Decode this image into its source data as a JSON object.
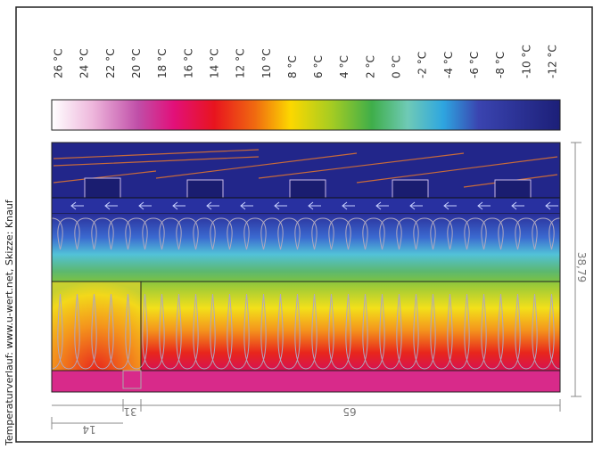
{
  "credit": "Temperaturverlauf: www.u-wert.net, Skizze: Knauf",
  "scale": {
    "labels": [
      "26 °C",
      "24 °C",
      "22 °C",
      "20 °C",
      "18 °C",
      "16 °C",
      "14 °C",
      "12 °C",
      "10 °C",
      "8 °C",
      "6 °C",
      "4 °C",
      "2 °C",
      "0 °C",
      "-2 °C",
      "-4 °C",
      "-6 °C",
      "-8 °C",
      "-10 °C",
      "-12 °C"
    ]
  },
  "dimensions": {
    "height": "38,79",
    "width_main": "65",
    "width_block": "31",
    "width_small": "14"
  }
}
